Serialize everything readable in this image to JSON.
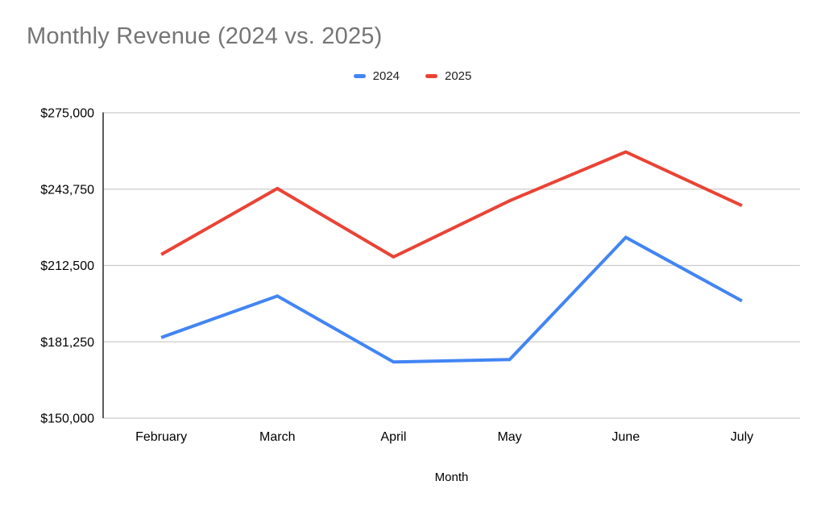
{
  "title": "Monthly Revenue (2024 vs. 2025)",
  "chart_data": {
    "type": "line",
    "title": "Monthly Revenue (2024 vs. 2025)",
    "xlabel": "Month",
    "ylabel": "",
    "categories": [
      "February",
      "March",
      "April",
      "May",
      "June",
      "July"
    ],
    "series": [
      {
        "name": "2024",
        "color": "#4285F4",
        "values": [
          183000,
          200000,
          173000,
          174000,
          224000,
          198000
        ]
      },
      {
        "name": "2025",
        "color": "#EA4335",
        "values": [
          217000,
          244000,
          216000,
          239000,
          259000,
          237000
        ]
      }
    ],
    "ylim": [
      150000,
      275000
    ],
    "ytick_step": 31250,
    "ytick_labels_top_to_bottom": [
      "$275,000",
      "$243,750",
      "$212,500",
      "$181,250",
      "$150,000"
    ],
    "grid": true,
    "legend_position": "top",
    "grid_color": "#cccccc",
    "axis_line_color": "#333333",
    "title_color": "#757575",
    "label_color": "#000000",
    "legend_text_color": "#212121"
  }
}
